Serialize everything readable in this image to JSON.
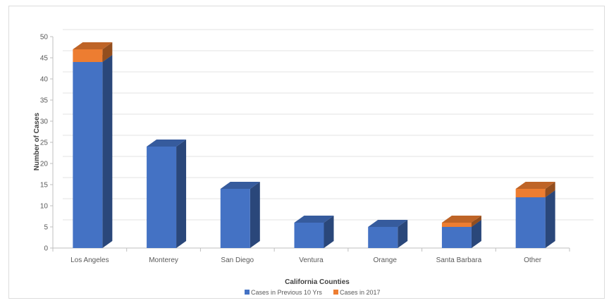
{
  "chart_data": {
    "type": "bar",
    "stacked": true,
    "style": "3d-column",
    "title": "",
    "xlabel": "California Counties",
    "ylabel": "Number of Cases",
    "ylim": [
      0,
      50
    ],
    "yticks": [
      0,
      5,
      10,
      15,
      20,
      25,
      30,
      35,
      40,
      45,
      50
    ],
    "grid": true,
    "legend_position": "bottom",
    "categories": [
      "Los Angeles",
      "Monterey",
      "San Diego",
      "Ventura",
      "Orange",
      "Santa Barbara",
      "Other"
    ],
    "series": [
      {
        "name": "Cases in Previous 10 Yrs",
        "color": "#4472c4",
        "values": [
          44,
          24,
          14,
          6,
          5,
          5,
          12
        ]
      },
      {
        "name": "Cases in 2017",
        "color": "#ed7d31",
        "values": [
          3,
          0,
          0,
          0,
          0,
          1,
          2
        ]
      }
    ]
  }
}
